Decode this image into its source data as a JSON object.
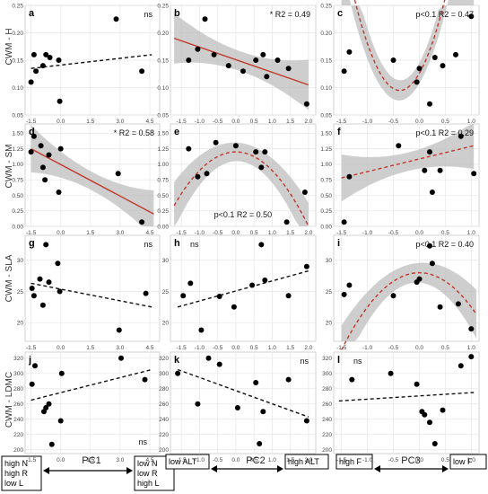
{
  "figure": {
    "row_labels": [
      "CWM - H",
      "CWM - SM",
      "CWM - SLA",
      "CWM - LDMC"
    ],
    "column_labels": [
      "PC1",
      "PC2",
      "PC3"
    ],
    "pc_ends": [
      {
        "left": [
          "high N",
          "high R",
          "low L"
        ],
        "right": [
          "low N",
          "low R",
          "high L"
        ]
      },
      {
        "left": [
          "low ALT"
        ],
        "right": [
          "high ALT"
        ]
      },
      {
        "left": [
          "high F"
        ],
        "right": [
          "low F"
        ]
      }
    ]
  },
  "chart_data": [
    {
      "panel": "a",
      "type": "scatter",
      "fit": "linear",
      "fit_style": "dashed",
      "ci": false,
      "stat": "ns",
      "xlim": [
        -1.8,
        5
      ],
      "ylim": [
        0.05,
        0.25
      ],
      "xticks": [
        -1.5,
        0,
        1.5,
        3,
        4.5
      ],
      "yticks": [
        0.05,
        0.1,
        0.15,
        0.2,
        0.25
      ],
      "points": [
        [
          -1.5,
          0.11
        ],
        [
          -1.35,
          0.16
        ],
        [
          -1.25,
          0.13
        ],
        [
          -0.9,
          0.14
        ],
        [
          -0.75,
          0.16
        ],
        [
          -0.55,
          0.155
        ],
        [
          -0.05,
          0.075
        ],
        [
          -0.1,
          0.15
        ],
        [
          2.8,
          0.225
        ],
        [
          4.1,
          0.13
        ]
      ],
      "line": [
        [
          -1.5,
          0.135
        ],
        [
          4.6,
          0.16
        ]
      ]
    },
    {
      "panel": "b",
      "type": "scatter",
      "fit": "linear",
      "fit_style": "solid",
      "ci": true,
      "stat": "* R2 = 0.49",
      "xlim": [
        -1.8,
        2.2
      ],
      "ylim": [
        0.05,
        0.25
      ],
      "xticks": [
        -1.5,
        -1.0,
        -0.5,
        0.0,
        0.5,
        1.0,
        1.5,
        2.0
      ],
      "yticks": [
        0.05,
        0.1,
        0.15,
        0.2,
        0.25
      ],
      "points": [
        [
          -1.3,
          0.15
        ],
        [
          -1.05,
          0.17
        ],
        [
          -0.85,
          0.225
        ],
        [
          -0.6,
          0.16
        ],
        [
          -0.2,
          0.14
        ],
        [
          0.2,
          0.13
        ],
        [
          0.55,
          0.15
        ],
        [
          0.75,
          0.16
        ],
        [
          0.85,
          0.12
        ],
        [
          1.15,
          0.15
        ],
        [
          1.45,
          0.135
        ],
        [
          1.95,
          0.07
        ]
      ],
      "line": [
        [
          -1.7,
          0.19
        ],
        [
          2.0,
          0.105
        ]
      ]
    },
    {
      "panel": "c",
      "type": "scatter",
      "fit": "quadratic",
      "fit_style": "dashed",
      "ci": true,
      "stat": "p<0.1  R2 = 0.47",
      "xlim": [
        -1.65,
        1.15
      ],
      "ylim": [
        0.05,
        0.25
      ],
      "xticks": [
        -1.5,
        -1.0,
        -0.5,
        0.0,
        0.5,
        1.0
      ],
      "yticks": [
        0.05,
        0.1,
        0.15,
        0.2,
        0.25
      ],
      "points": [
        [
          -1.45,
          0.13
        ],
        [
          -1.35,
          0.165
        ],
        [
          -0.5,
          0.15
        ],
        [
          -0.05,
          0.11
        ],
        [
          0.0,
          0.135
        ],
        [
          0.2,
          0.07
        ],
        [
          0.3,
          0.155
        ],
        [
          0.45,
          0.14
        ],
        [
          0.7,
          0.16
        ],
        [
          1.0,
          0.23
        ]
      ],
      "quad": [
        0.126,
        0.166,
        0.22
      ],
      "fit_range": [
        -1.5,
        1.05
      ]
    },
    {
      "panel": "d",
      "type": "scatter",
      "fit": "linear",
      "fit_style": "solid",
      "ci": true,
      "stat": "* R2 = 0.58",
      "xlim": [
        -1.8,
        5
      ],
      "ylim": [
        0,
        1.65
      ],
      "xticks": [
        -1.5,
        0,
        1.5,
        3,
        4.5
      ],
      "yticks": [
        0.0,
        0.25,
        0.5,
        0.75,
        1.0,
        1.25,
        1.5
      ],
      "points": [
        [
          -1.5,
          1.2
        ],
        [
          -1.35,
          1.45
        ],
        [
          -1.0,
          1.3
        ],
        [
          -0.9,
          0.95
        ],
        [
          -0.8,
          0.75
        ],
        [
          -0.6,
          1.15
        ],
        [
          -0.1,
          0.55
        ],
        [
          0.0,
          1.25
        ],
        [
          2.9,
          0.85
        ],
        [
          4.1,
          0.07
        ]
      ],
      "line": [
        [
          -1.5,
          1.25
        ],
        [
          4.7,
          0.2
        ]
      ]
    },
    {
      "panel": "e",
      "type": "scatter",
      "fit": "quadratic",
      "fit_style": "dashed",
      "ci": true,
      "stat": "p<0.1  R2 = 0.50",
      "xlim": [
        -1.8,
        2.2
      ],
      "ylim": [
        0,
        1.65
      ],
      "xticks": [
        -1.5,
        -1.0,
        -0.5,
        0.0,
        0.5,
        1.0,
        1.5,
        2.0
      ],
      "yticks": [
        0.0,
        0.25,
        0.5,
        0.75,
        1.0,
        1.25,
        1.5
      ],
      "points": [
        [
          -1.3,
          1.25
        ],
        [
          -1.05,
          0.8
        ],
        [
          -0.8,
          0.85
        ],
        [
          -0.55,
          1.35
        ],
        [
          0.0,
          1.3
        ],
        [
          0.55,
          1.2
        ],
        [
          0.7,
          0.95
        ],
        [
          0.8,
          1.2
        ],
        [
          1.4,
          0.07
        ],
        [
          1.9,
          0.55
        ]
      ],
      "quad": [
        1.2,
        0.0,
        -0.3
      ],
      "fit_range": [
        -1.7,
        2.0
      ]
    },
    {
      "panel": "f",
      "type": "scatter",
      "fit": "linear",
      "fit_style": "dashed",
      "ci": true,
      "stat": "p<0.1  R2 = 0.29",
      "xlim": [
        -1.65,
        1.15
      ],
      "ylim": [
        0,
        1.65
      ],
      "xticks": [
        -1.5,
        -1.0,
        -0.5,
        0.0,
        0.5,
        1.0
      ],
      "yticks": [
        0.0,
        0.25,
        0.5,
        0.75,
        1.0,
        1.25,
        1.5
      ],
      "points": [
        [
          -1.45,
          0.07
        ],
        [
          -1.35,
          0.8
        ],
        [
          -0.4,
          1.3
        ],
        [
          0.1,
          0.9
        ],
        [
          0.2,
          1.2
        ],
        [
          0.25,
          0.55
        ],
        [
          0.4,
          0.9
        ],
        [
          0.8,
          1.45
        ],
        [
          1.05,
          0.85
        ]
      ],
      "line": [
        [
          -1.5,
          0.78
        ],
        [
          1.05,
          1.3
        ]
      ]
    },
    {
      "panel": "g",
      "type": "scatter",
      "fit": "linear",
      "fit_style": "dashed",
      "ci": false,
      "stat": "ns",
      "xlim": [
        -1.8,
        5
      ],
      "ylim": [
        17,
        34
      ],
      "xticks": [
        -1.5,
        0,
        1.5,
        3,
        4.5
      ],
      "yticks": [
        20,
        25,
        30
      ],
      "points": [
        [
          -1.45,
          25.5
        ],
        [
          -1.35,
          24.3
        ],
        [
          -1.05,
          27.0
        ],
        [
          -0.9,
          22.8
        ],
        [
          -0.75,
          32.5
        ],
        [
          -0.6,
          26.5
        ],
        [
          -0.15,
          29.5
        ],
        [
          -0.05,
          25.0
        ],
        [
          2.95,
          18.8
        ],
        [
          4.3,
          24.7
        ]
      ],
      "line": [
        [
          -1.5,
          26.3
        ],
        [
          4.6,
          22.5
        ]
      ]
    },
    {
      "panel": "h",
      "type": "scatter",
      "fit": "linear",
      "fit_style": "dashed",
      "ci": false,
      "stat": "ns",
      "xlim": [
        -1.8,
        2.2
      ],
      "ylim": [
        17,
        34
      ],
      "xticks": [
        -1.5,
        -1.0,
        -0.5,
        0.0,
        0.5,
        1.0,
        1.5,
        2.0
      ],
      "yticks": [
        20,
        25,
        30
      ],
      "points": [
        [
          -1.45,
          24.3
        ],
        [
          -1.25,
          26.3
        ],
        [
          -0.95,
          18.8
        ],
        [
          -0.45,
          24.2
        ],
        [
          -0.05,
          22.5
        ],
        [
          0.45,
          26.0
        ],
        [
          0.7,
          32.5
        ],
        [
          0.8,
          26.8
        ],
        [
          1.45,
          24.3
        ],
        [
          1.95,
          29.0
        ]
      ],
      "line": [
        [
          -1.6,
          22.5
        ],
        [
          2.0,
          28.3
        ]
      ]
    },
    {
      "panel": "i",
      "type": "scatter",
      "fit": "quadratic",
      "fit_style": "dashed",
      "ci": true,
      "stat": "p<0.1  R2 = 0.40",
      "xlim": [
        -1.65,
        1.15
      ],
      "ylim": [
        17,
        34
      ],
      "xticks": [
        -1.5,
        -1.0,
        -0.5,
        0.0,
        0.5,
        1.0
      ],
      "yticks": [
        20,
        25,
        30
      ],
      "points": [
        [
          -1.45,
          24.5
        ],
        [
          -1.35,
          26.0
        ],
        [
          -0.5,
          24.3
        ],
        [
          -0.05,
          26.5
        ],
        [
          0.0,
          27.0
        ],
        [
          0.2,
          32.3
        ],
        [
          0.25,
          29.5
        ],
        [
          0.4,
          22.5
        ],
        [
          0.75,
          23.0
        ],
        [
          1.0,
          19.0
        ]
      ],
      "quad": [
        28.0,
        0.0,
        -5.5
      ],
      "fit_range": [
        -1.5,
        1.1
      ]
    },
    {
      "panel": "j",
      "type": "scatter",
      "fit": "linear",
      "fit_style": "dashed",
      "ci": false,
      "stat": "ns",
      "xlim": [
        -1.8,
        5
      ],
      "ylim": [
        195,
        328
      ],
      "xticks": [
        -1.5,
        0,
        1.5,
        3,
        4.5
      ],
      "yticks": [
        200,
        220,
        240,
        260,
        280,
        300,
        320
      ],
      "points": [
        [
          -1.45,
          286
        ],
        [
          -1.3,
          310
        ],
        [
          -0.85,
          250
        ],
        [
          -0.75,
          255
        ],
        [
          -0.6,
          260
        ],
        [
          -0.45,
          207
        ],
        [
          0.0,
          238
        ],
        [
          0.05,
          300
        ],
        [
          3.05,
          320
        ],
        [
          4.25,
          292
        ]
      ],
      "line": [
        [
          -1.5,
          265
        ],
        [
          4.6,
          305
        ]
      ]
    },
    {
      "panel": "k",
      "type": "scatter",
      "fit": "linear",
      "fit_style": "dashed",
      "ci": false,
      "stat": "ns",
      "xlim": [
        -1.8,
        2.2
      ],
      "ylim": [
        195,
        328
      ],
      "xticks": [
        -1.5,
        -1.0,
        -0.5,
        0.0,
        0.5,
        1.0,
        1.5,
        2.0
      ],
      "yticks": [
        200,
        220,
        240,
        260,
        280,
        300,
        320
      ],
      "points": [
        [
          -1.6,
          300
        ],
        [
          -1.05,
          260
        ],
        [
          -0.75,
          320
        ],
        [
          -0.45,
          312
        ],
        [
          0.05,
          255
        ],
        [
          0.55,
          288
        ],
        [
          0.65,
          208
        ],
        [
          0.75,
          250
        ],
        [
          1.45,
          292
        ],
        [
          1.95,
          238
        ]
      ],
      "line": [
        [
          -1.6,
          305
        ],
        [
          2.0,
          243
        ]
      ]
    },
    {
      "panel": "l",
      "type": "scatter",
      "fit": "linear",
      "fit_style": "dashed",
      "ci": false,
      "stat": "ns",
      "xlim": [
        -1.65,
        1.15
      ],
      "ylim": [
        195,
        328
      ],
      "xticks": [
        -1.5,
        -1.0,
        -0.5,
        0.0,
        0.5,
        1.0
      ],
      "yticks": [
        200,
        220,
        240,
        260,
        280,
        300,
        320
      ],
      "points": [
        [
          -1.3,
          292
        ],
        [
          -0.55,
          300
        ],
        [
          -0.05,
          286
        ],
        [
          0.05,
          250
        ],
        [
          0.1,
          246
        ],
        [
          0.2,
          236
        ],
        [
          0.3,
          208
        ],
        [
          0.45,
          252
        ],
        [
          0.8,
          310
        ],
        [
          1.0,
          322
        ]
      ],
      "line": [
        [
          -1.55,
          264
        ],
        [
          1.05,
          275
        ]
      ]
    }
  ]
}
